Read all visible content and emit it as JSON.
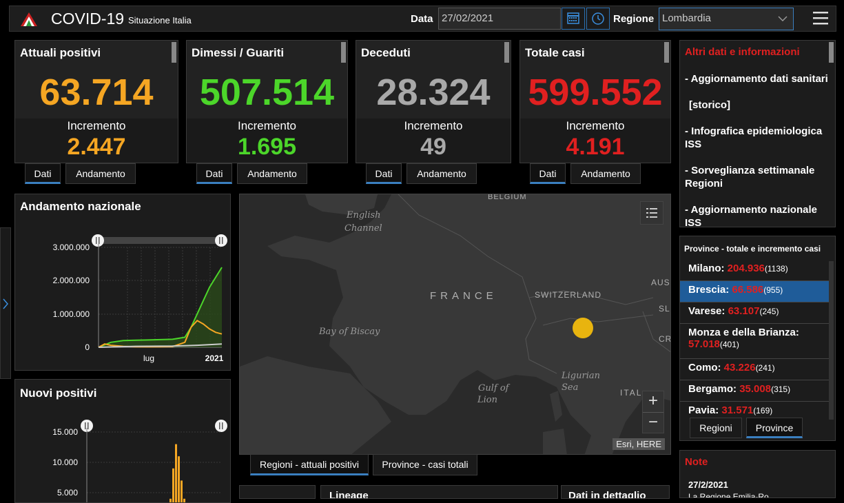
{
  "header": {
    "title": "COVID-19",
    "subtitle": "Situazione Italia",
    "date_label": "Data",
    "date_value": "27/02/2021",
    "region_label": "Regione",
    "region_value": "Lombardia"
  },
  "cards": [
    {
      "title": "Attuali positivi",
      "value": "63.714",
      "inc_label": "Incremento",
      "inc": "2.447",
      "color": "#f5a623"
    },
    {
      "title": "Dimessi / Guariti",
      "value": "507.514",
      "inc_label": "Incremento",
      "inc": "1.695",
      "color": "#4cd62a"
    },
    {
      "title": "Deceduti",
      "value": "28.324",
      "inc_label": "Incremento",
      "inc": "49",
      "color": "#a9a9a9"
    },
    {
      "title": "Totale casi",
      "value": "599.552",
      "inc_label": "Incremento",
      "inc": "4.191",
      "color": "#e02020"
    }
  ],
  "card_tabs": {
    "dati": "Dati",
    "andamento": "Andamento"
  },
  "info": {
    "title": "Altri dati e informazioni",
    "items": [
      "- Aggiornamento dati sanitari",
      "[storico]",
      "- Infografica epidemiologica ISS",
      "- Sorveglianza settimanale Regioni",
      "- Aggiornamento nazionale ISS"
    ]
  },
  "provinces": {
    "heading": "Province - totale e incremento casi",
    "rows": [
      {
        "name": "Milano:",
        "total": "204.936",
        "inc": "(1138)"
      },
      {
        "name": "Brescia:",
        "total": "66.586",
        "inc": "(955)"
      },
      {
        "name": "Varese:",
        "total": "63.107",
        "inc": "(245)"
      },
      {
        "name": "Monza e della Brianza:",
        "total": "57.018",
        "inc": "(401)"
      },
      {
        "name": "Como:",
        "total": "43.226",
        "inc": "(241)"
      },
      {
        "name": "Bergamo:",
        "total": "35.008",
        "inc": "(315)"
      },
      {
        "name": "Pavia:",
        "total": "31.571",
        "inc": "(169)"
      }
    ],
    "tab_regioni": "Regioni",
    "tab_province": "Province"
  },
  "note": {
    "title": "Note",
    "date": "27/2/2021",
    "text": "La Regione Emilia-Ro..."
  },
  "map": {
    "labels": {
      "belgium": "BELGIUM",
      "english_channel_1": "English",
      "english_channel_2": "Channel",
      "france": "FRANCE",
      "switzerland": "SWITZERLAND",
      "aus": "AUS",
      "slo": "SLO",
      "cro": "CR",
      "biscay": "Bay of Biscay",
      "gulf_1": "Gulf of",
      "gulf_2": "Lion",
      "ligurian_1": "Ligurian",
      "ligurian_2": "Sea",
      "italy": "ITAL"
    },
    "attribution": "Esri, HERE",
    "zoom_in": "+",
    "zoom_out": "−",
    "tab_regioni": "Regioni - attuali positivi",
    "tab_province": "Province - casi totali"
  },
  "bottom": {
    "label_1": "Lineage",
    "label_2": "Dati in dettaglio"
  },
  "chart_data": [
    {
      "type": "line",
      "title": "Andamento nazionale",
      "ylim": [
        0,
        3000000
      ],
      "yticks": [
        "3.000.000",
        "2.000.000",
        "1.000.000",
        "0"
      ],
      "xticks": [
        "lug",
        "2021"
      ],
      "series": [
        {
          "color": "#4cd62a",
          "x": [
            0,
            0.1,
            0.2,
            0.3,
            0.4,
            0.5,
            0.6,
            0.7,
            0.75,
            0.8,
            0.85,
            0.9,
            0.95,
            1.0
          ],
          "values": [
            0,
            150000,
            200000,
            210000,
            220000,
            230000,
            240000,
            300000,
            600000,
            1000000,
            1400000,
            1800000,
            2100000,
            2400000
          ]
        },
        {
          "color": "#f5a623",
          "x": [
            0,
            0.05,
            0.1,
            0.2,
            0.3,
            0.4,
            0.5,
            0.6,
            0.7,
            0.75,
            0.8,
            0.85,
            0.9,
            0.95,
            1.0
          ],
          "values": [
            0,
            100000,
            60000,
            30000,
            15000,
            12000,
            15000,
            20000,
            150000,
            600000,
            800000,
            700000,
            550000,
            450000,
            400000
          ]
        },
        {
          "color": "#cccccc",
          "x": [
            0,
            0.3,
            0.6,
            0.8,
            1.0
          ],
          "values": [
            0,
            30000,
            35000,
            60000,
            100000
          ]
        }
      ]
    },
    {
      "type": "bar",
      "title": "Nuovi positivi",
      "ylim": [
        0,
        15000
      ],
      "yticks": [
        "15.000",
        "10.000",
        "5.000"
      ],
      "values": [
        0,
        200,
        500,
        1500,
        4000,
        9000,
        13000,
        11000,
        7000,
        4000,
        2000
      ]
    }
  ]
}
